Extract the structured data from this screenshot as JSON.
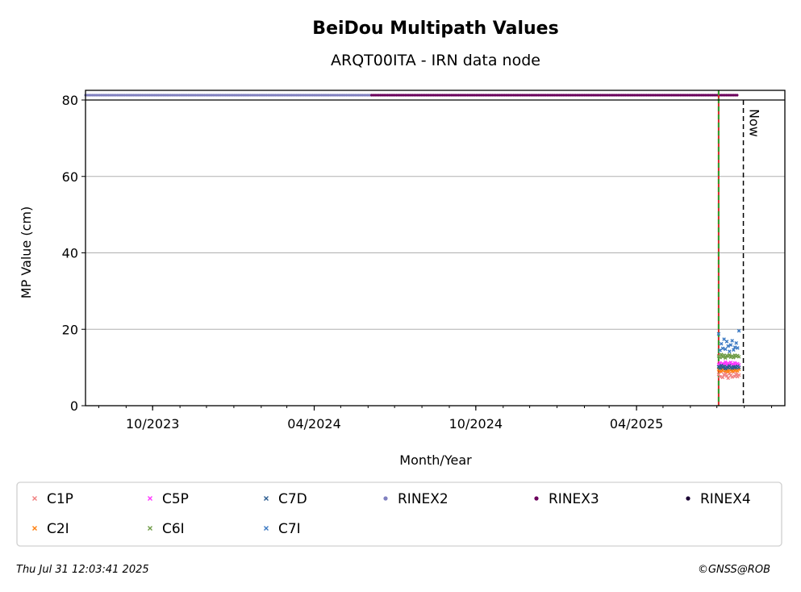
{
  "chart_data": {
    "type": "scatter",
    "title": "BeiDou Multipath Values",
    "subtitle": "ARQT00ITA - IRN data node",
    "xlabel": "Month/Year",
    "ylabel": "MP Value (cm)",
    "ylim": [
      0,
      80
    ],
    "yticks": [
      0,
      20,
      40,
      60,
      80
    ],
    "xlim": [
      "2023-07-17",
      "2025-09-16"
    ],
    "xticks": [
      {
        "date": "2023-10-01",
        "label": "10/2023"
      },
      {
        "date": "2024-04-01",
        "label": "04/2024"
      },
      {
        "date": "2024-10-01",
        "label": "10/2024"
      },
      {
        "date": "2025-04-01",
        "label": "04/2025"
      }
    ],
    "grid": "horizontal",
    "now_label": "Now",
    "now_date": "2025-07-31",
    "marker_line_date": "2025-07-03",
    "rinex_bands": [
      {
        "name": "RINEX2",
        "start": "2023-07-17",
        "end": "2024-06-05",
        "color": "#8080c0"
      },
      {
        "name": "RINEX3",
        "start": "2024-06-05",
        "end": "2025-07-25",
        "color": "#6b005c"
      }
    ],
    "series": [
      {
        "name": "C1P",
        "color": "#f08080",
        "marker": "x",
        "start": "2025-07-03",
        "end": "2025-07-26",
        "values": [
          8.2,
          7.6,
          8.9,
          7.4,
          8.1,
          8.6,
          7.8,
          7.2,
          8.4,
          7.9,
          7.5,
          8.8,
          7.7,
          8.3,
          7.6,
          8.0
        ]
      },
      {
        "name": "C2I",
        "color": "#ff7f0e",
        "marker": "x",
        "start": "2025-07-03",
        "end": "2025-07-26",
        "values": [
          9.4,
          9.0,
          9.8,
          9.2,
          9.6,
          9.1,
          9.5,
          8.9,
          9.7,
          9.3,
          9.0,
          9.6,
          9.2,
          9.4,
          9.1,
          9.5
        ]
      },
      {
        "name": "C5P",
        "color": "#ff33ff",
        "marker": "x",
        "start": "2025-07-03",
        "end": "2025-07-26",
        "values": [
          10.8,
          11.2,
          10.5,
          11.0,
          10.9,
          11.4,
          10.7,
          11.1,
          10.6,
          11.3,
          10.9,
          10.6,
          11.2,
          10.8,
          11.0,
          10.7
        ]
      },
      {
        "name": "C6I",
        "color": "#6e9b46",
        "marker": "x",
        "start": "2025-07-03",
        "end": "2025-07-26",
        "values": [
          13.0,
          12.6,
          13.4,
          12.8,
          13.2,
          12.5,
          13.1,
          12.9,
          13.3,
          12.7,
          13.0,
          12.6,
          13.2,
          12.9,
          13.1,
          12.8
        ]
      },
      {
        "name": "C7D",
        "color": "#2b5c8f",
        "marker": "x",
        "start": "2025-07-03",
        "end": "2025-07-26",
        "values": [
          10.2,
          9.8,
          10.5,
          10.0,
          10.3,
          9.7,
          10.1,
          9.9,
          10.4,
          10.0,
          9.8,
          10.2,
          10.1,
          9.9,
          10.3,
          10.0
        ]
      },
      {
        "name": "C7I",
        "color": "#3a78c2",
        "marker": "x",
        "start": "2025-07-03",
        "end": "2025-07-26",
        "values": [
          18.8,
          14.5,
          16.2,
          15.0,
          17.4,
          14.8,
          16.8,
          15.6,
          14.2,
          15.9,
          17.0,
          14.6,
          15.3,
          16.4,
          15.1,
          19.6
        ]
      }
    ],
    "legend": [
      {
        "label": "C1P",
        "color": "#f08080",
        "marker": "x"
      },
      {
        "label": "C5P",
        "color": "#ff33ff",
        "marker": "x"
      },
      {
        "label": "C7D",
        "color": "#2b5c8f",
        "marker": "x"
      },
      {
        "label": "RINEX2",
        "color": "#8080c0",
        "marker": "dot"
      },
      {
        "label": "RINEX3",
        "color": "#6b005c",
        "marker": "dot"
      },
      {
        "label": "RINEX4",
        "color": "#1a0033",
        "marker": "dot"
      },
      {
        "label": "C2I",
        "color": "#ff7f0e",
        "marker": "x"
      },
      {
        "label": "C6I",
        "color": "#6e9b46",
        "marker": "x"
      },
      {
        "label": "C7I",
        "color": "#3a78c2",
        "marker": "x"
      }
    ],
    "legend_position": "bottom"
  },
  "footer": {
    "timestamp": "Thu Jul 31 12:03:41 2025",
    "copyright": "©GNSS@ROB"
  }
}
